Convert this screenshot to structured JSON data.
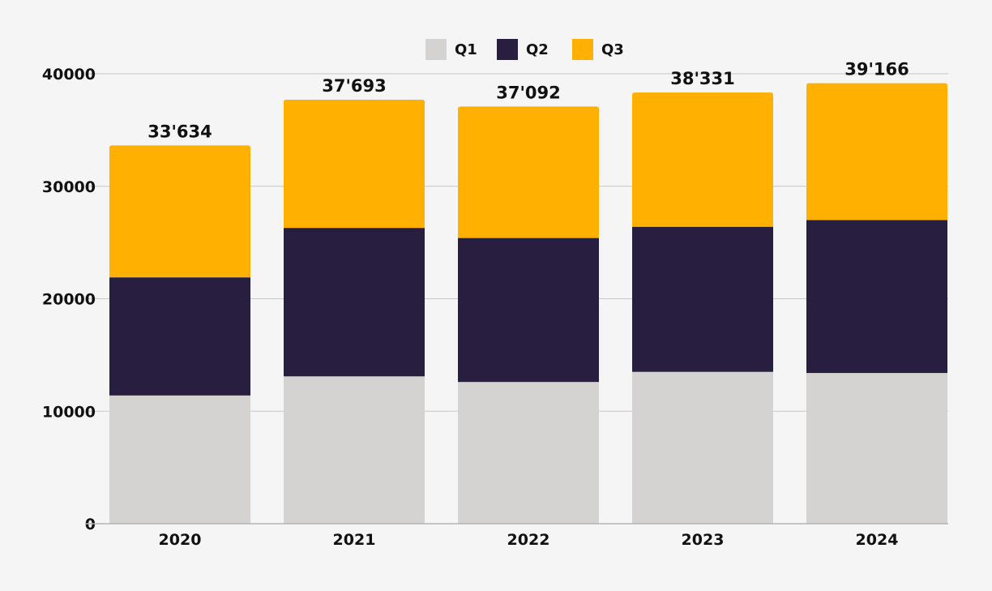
{
  "chart_data": {
    "type": "bar",
    "stacked": true,
    "categories": [
      "2020",
      "2021",
      "2022",
      "2023",
      "2024"
    ],
    "series": [
      {
        "name": "Q1",
        "color": "#d4d3d1",
        "values": [
          11400,
          13100,
          12600,
          13500,
          13400
        ]
      },
      {
        "name": "Q2",
        "color": "#271e40",
        "values": [
          10500,
          13200,
          12800,
          12900,
          13600
        ]
      },
      {
        "name": "Q3",
        "color": "#ffb000",
        "values": [
          11734,
          11393,
          11692,
          11931,
          12166
        ]
      }
    ],
    "totals": [
      "33'634",
      "37'693",
      "37'092",
      "38'331",
      "39'166"
    ],
    "yticks": [
      "0",
      "10000",
      "20000",
      "30000",
      "40000"
    ],
    "ylim": [
      0,
      40000
    ],
    "grid": true,
    "legend_position": "top-center",
    "background": "#f5f5f5",
    "gridline_color": "#c8c8c8"
  }
}
